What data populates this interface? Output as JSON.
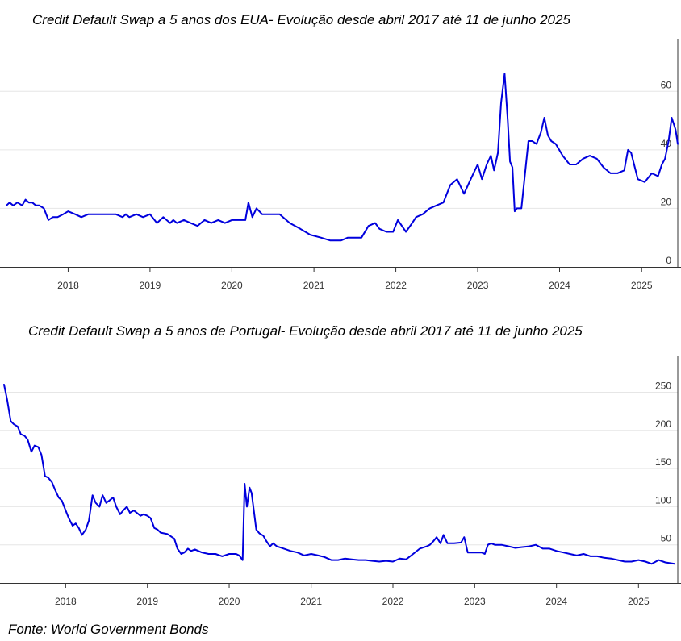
{
  "source": "Fonte: World Government Bonds",
  "colors": {
    "line": "#0000dd",
    "grid": "#e6e6e6",
    "axis": "#333333"
  },
  "chart_data": [
    {
      "type": "line",
      "title": "Credit Default Swap a 5 anos dos EUA- Evolução desde abril 2017 até 11 de junho 2025",
      "x_axis": {
        "type": "date",
        "range": [
          "2017-04",
          "2025-06-11"
        ],
        "ticks": [
          "2018",
          "2019",
          "2020",
          "2021",
          "2022",
          "2023",
          "2024",
          "2025"
        ]
      },
      "y_axis": {
        "position": "right",
        "ylim": [
          0,
          78
        ],
        "ticks": [
          0,
          20,
          40,
          60
        ]
      },
      "grid": true,
      "series": [
        {
          "x": [
            "2017-04-01",
            "2017-04-15",
            "2017-05-01",
            "2017-05-20",
            "2017-06-10",
            "2017-06-25",
            "2017-07-10",
            "2017-07-25",
            "2017-08-10",
            "2017-08-25",
            "2017-09-15",
            "2017-10-05",
            "2017-10-25",
            "2017-11-15",
            "2017-12-10",
            "2018-01-01",
            "2018-02-01",
            "2018-03-01",
            "2018-04-01",
            "2018-05-01",
            "2018-06-01",
            "2018-07-01",
            "2018-08-01",
            "2018-09-01",
            "2018-09-15",
            "2018-10-01",
            "2018-11-01",
            "2018-12-01",
            "2019-01-01",
            "2019-02-01",
            "2019-03-01",
            "2019-04-01",
            "2019-04-15",
            "2019-05-01",
            "2019-06-01",
            "2019-07-01",
            "2019-08-01",
            "2019-09-01",
            "2019-10-01",
            "2019-11-01",
            "2019-12-01",
            "2020-01-01",
            "2020-02-01",
            "2020-03-01",
            "2020-03-15",
            "2020-04-01",
            "2020-04-20",
            "2020-05-15",
            "2020-06-15",
            "2020-08-01",
            "2020-09-15",
            "2020-11-01",
            "2020-12-15",
            "2021-02-01",
            "2021-03-15",
            "2021-05-01",
            "2021-06-01",
            "2021-07-01",
            "2021-08-01",
            "2021-09-01",
            "2021-10-01",
            "2021-10-20",
            "2021-11-20",
            "2021-12-20",
            "2022-01-10",
            "2022-02-15",
            "2022-03-15",
            "2022-04-01",
            "2022-05-01",
            "2022-06-01",
            "2022-07-01",
            "2022-08-01",
            "2022-09-01",
            "2022-10-01",
            "2022-11-01",
            "2022-12-01",
            "2023-01-01",
            "2023-01-20",
            "2023-02-10",
            "2023-03-01",
            "2023-03-15",
            "2023-04-01",
            "2023-04-15",
            "2023-05-01",
            "2023-05-15",
            "2023-05-25",
            "2023-06-05",
            "2023-06-15",
            "2023-06-25",
            "2023-07-15",
            "2023-08-15",
            "2023-09-01",
            "2023-09-20",
            "2023-10-10",
            "2023-10-25",
            "2023-11-10",
            "2023-11-25",
            "2023-12-15",
            "2024-01-15",
            "2024-02-15",
            "2024-03-15",
            "2024-04-15",
            "2024-05-15",
            "2024-06-15",
            "2024-07-15",
            "2024-08-15",
            "2024-09-15",
            "2024-10-15",
            "2024-11-01",
            "2024-11-15",
            "2024-12-15",
            "2025-01-15",
            "2025-02-15",
            "2025-03-15",
            "2025-04-01",
            "2025-04-15",
            "2025-05-01",
            "2025-05-15",
            "2025-06-01",
            "2025-06-11"
          ],
          "values": [
            21,
            22,
            21,
            22,
            21,
            23,
            22,
            22,
            21,
            21,
            20,
            16,
            17,
            17,
            18,
            19,
            18,
            17,
            18,
            18,
            18,
            18,
            18,
            17,
            18,
            17,
            18,
            17,
            18,
            15,
            17,
            15,
            16,
            15,
            16,
            15,
            14,
            16,
            15,
            16,
            15,
            16,
            16,
            16,
            22,
            17,
            20,
            18,
            18,
            18,
            15,
            13,
            11,
            10,
            9,
            9,
            10,
            10,
            10,
            14,
            15,
            13,
            12,
            12,
            16,
            12,
            15,
            17,
            18,
            20,
            21,
            22,
            28,
            30,
            25,
            30,
            35,
            30,
            35,
            38,
            33,
            39,
            56,
            66,
            50,
            36,
            34,
            19,
            20,
            20,
            43,
            43,
            42,
            46,
            51,
            45,
            43,
            42,
            38,
            35,
            35,
            37,
            38,
            37,
            34,
            32,
            32,
            33,
            40,
            39,
            30,
            29,
            32,
            31,
            35,
            37,
            43,
            51,
            47,
            42
          ]
        }
      ]
    },
    {
      "type": "line",
      "title": "Credit Default Swap a 5 anos de Portugal- Evolução desde abril 2017 até 11 de junho 2025",
      "x_axis": {
        "type": "date",
        "range": [
          "2017-04",
          "2025-06-11"
        ],
        "ticks": [
          "2018",
          "2019",
          "2020",
          "2021",
          "2022",
          "2023",
          "2024",
          "2025"
        ]
      },
      "y_axis": {
        "position": "right",
        "ylim": [
          0,
          297
        ],
        "ticks": [
          50,
          100,
          150,
          200,
          250
        ]
      },
      "grid": true,
      "series": [
        {
          "x": [
            "2017-04-01",
            "2017-04-15",
            "2017-05-01",
            "2017-05-15",
            "2017-06-01",
            "2017-06-15",
            "2017-07-01",
            "2017-07-15",
            "2017-08-01",
            "2017-08-15",
            "2017-09-01",
            "2017-09-15",
            "2017-10-01",
            "2017-10-15",
            "2017-11-01",
            "2017-11-15",
            "2017-12-01",
            "2017-12-15",
            "2018-01-01",
            "2018-01-15",
            "2018-02-01",
            "2018-02-15",
            "2018-03-01",
            "2018-03-15",
            "2018-04-01",
            "2018-04-15",
            "2018-05-01",
            "2018-05-15",
            "2018-06-01",
            "2018-06-15",
            "2018-07-01",
            "2018-07-15",
            "2018-08-01",
            "2018-08-15",
            "2018-09-01",
            "2018-09-15",
            "2018-10-01",
            "2018-10-15",
            "2018-11-01",
            "2018-11-15",
            "2018-12-01",
            "2018-12-15",
            "2019-01-01",
            "2019-01-15",
            "2019-02-01",
            "2019-02-15",
            "2019-03-01",
            "2019-04-01",
            "2019-05-01",
            "2019-05-15",
            "2019-06-01",
            "2019-06-15",
            "2019-07-01",
            "2019-07-15",
            "2019-08-01",
            "2019-09-01",
            "2019-10-01",
            "2019-11-01",
            "2019-12-01",
            "2020-01-01",
            "2020-02-01",
            "2020-02-15",
            "2020-03-01",
            "2020-03-10",
            "2020-03-20",
            "2020-04-01",
            "2020-04-10",
            "2020-04-20",
            "2020-05-01",
            "2020-05-15",
            "2020-06-01",
            "2020-06-15",
            "2020-07-01",
            "2020-07-15",
            "2020-08-01",
            "2020-09-01",
            "2020-10-01",
            "2020-11-01",
            "2020-12-01",
            "2021-01-01",
            "2021-02-01",
            "2021-03-01",
            "2021-04-01",
            "2021-05-01",
            "2021-06-01",
            "2021-07-01",
            "2021-08-01",
            "2021-09-01",
            "2021-10-01",
            "2021-11-01",
            "2021-12-01",
            "2022-01-01",
            "2022-02-01",
            "2022-03-01",
            "2022-04-01",
            "2022-05-01",
            "2022-06-01",
            "2022-06-15",
            "2022-07-01",
            "2022-07-15",
            "2022-08-01",
            "2022-08-15",
            "2022-09-01",
            "2022-10-01",
            "2022-11-01",
            "2022-11-15",
            "2022-12-01",
            "2023-01-01",
            "2023-02-01",
            "2023-02-15",
            "2023-03-01",
            "2023-03-15",
            "2023-04-01",
            "2023-05-01",
            "2023-06-01",
            "2023-07-01",
            "2023-08-01",
            "2023-09-01",
            "2023-10-01",
            "2023-11-01",
            "2023-12-01",
            "2024-01-01",
            "2024-02-01",
            "2024-03-01",
            "2024-04-01",
            "2024-05-01",
            "2024-06-01",
            "2024-07-01",
            "2024-08-01",
            "2024-09-01",
            "2024-10-01",
            "2024-11-01",
            "2024-12-01",
            "2025-01-01",
            "2025-02-01",
            "2025-03-01",
            "2025-04-01",
            "2025-05-01",
            "2025-06-11"
          ],
          "values": [
            260,
            240,
            212,
            208,
            205,
            195,
            193,
            188,
            172,
            180,
            178,
            168,
            140,
            138,
            132,
            122,
            112,
            108,
            95,
            85,
            75,
            78,
            72,
            63,
            70,
            82,
            115,
            105,
            100,
            115,
            105,
            108,
            112,
            100,
            90,
            95,
            100,
            92,
            95,
            92,
            88,
            90,
            88,
            85,
            72,
            70,
            66,
            64,
            58,
            45,
            38,
            40,
            45,
            42,
            44,
            40,
            38,
            38,
            35,
            38,
            38,
            36,
            30,
            130,
            100,
            125,
            118,
            95,
            70,
            65,
            62,
            55,
            48,
            52,
            48,
            45,
            42,
            40,
            36,
            38,
            36,
            34,
            30,
            30,
            32,
            31,
            30,
            30,
            29,
            28,
            29,
            28,
            32,
            31,
            38,
            45,
            48,
            50,
            55,
            60,
            52,
            63,
            52,
            52,
            53,
            60,
            40,
            40,
            40,
            38,
            50,
            52,
            50,
            50,
            48,
            46,
            47,
            48,
            50,
            45,
            45,
            42,
            40,
            38,
            36,
            38,
            35,
            35,
            33,
            32,
            30,
            28,
            28,
            30,
            28,
            25,
            30,
            27,
            25
          ]
        }
      ]
    }
  ]
}
